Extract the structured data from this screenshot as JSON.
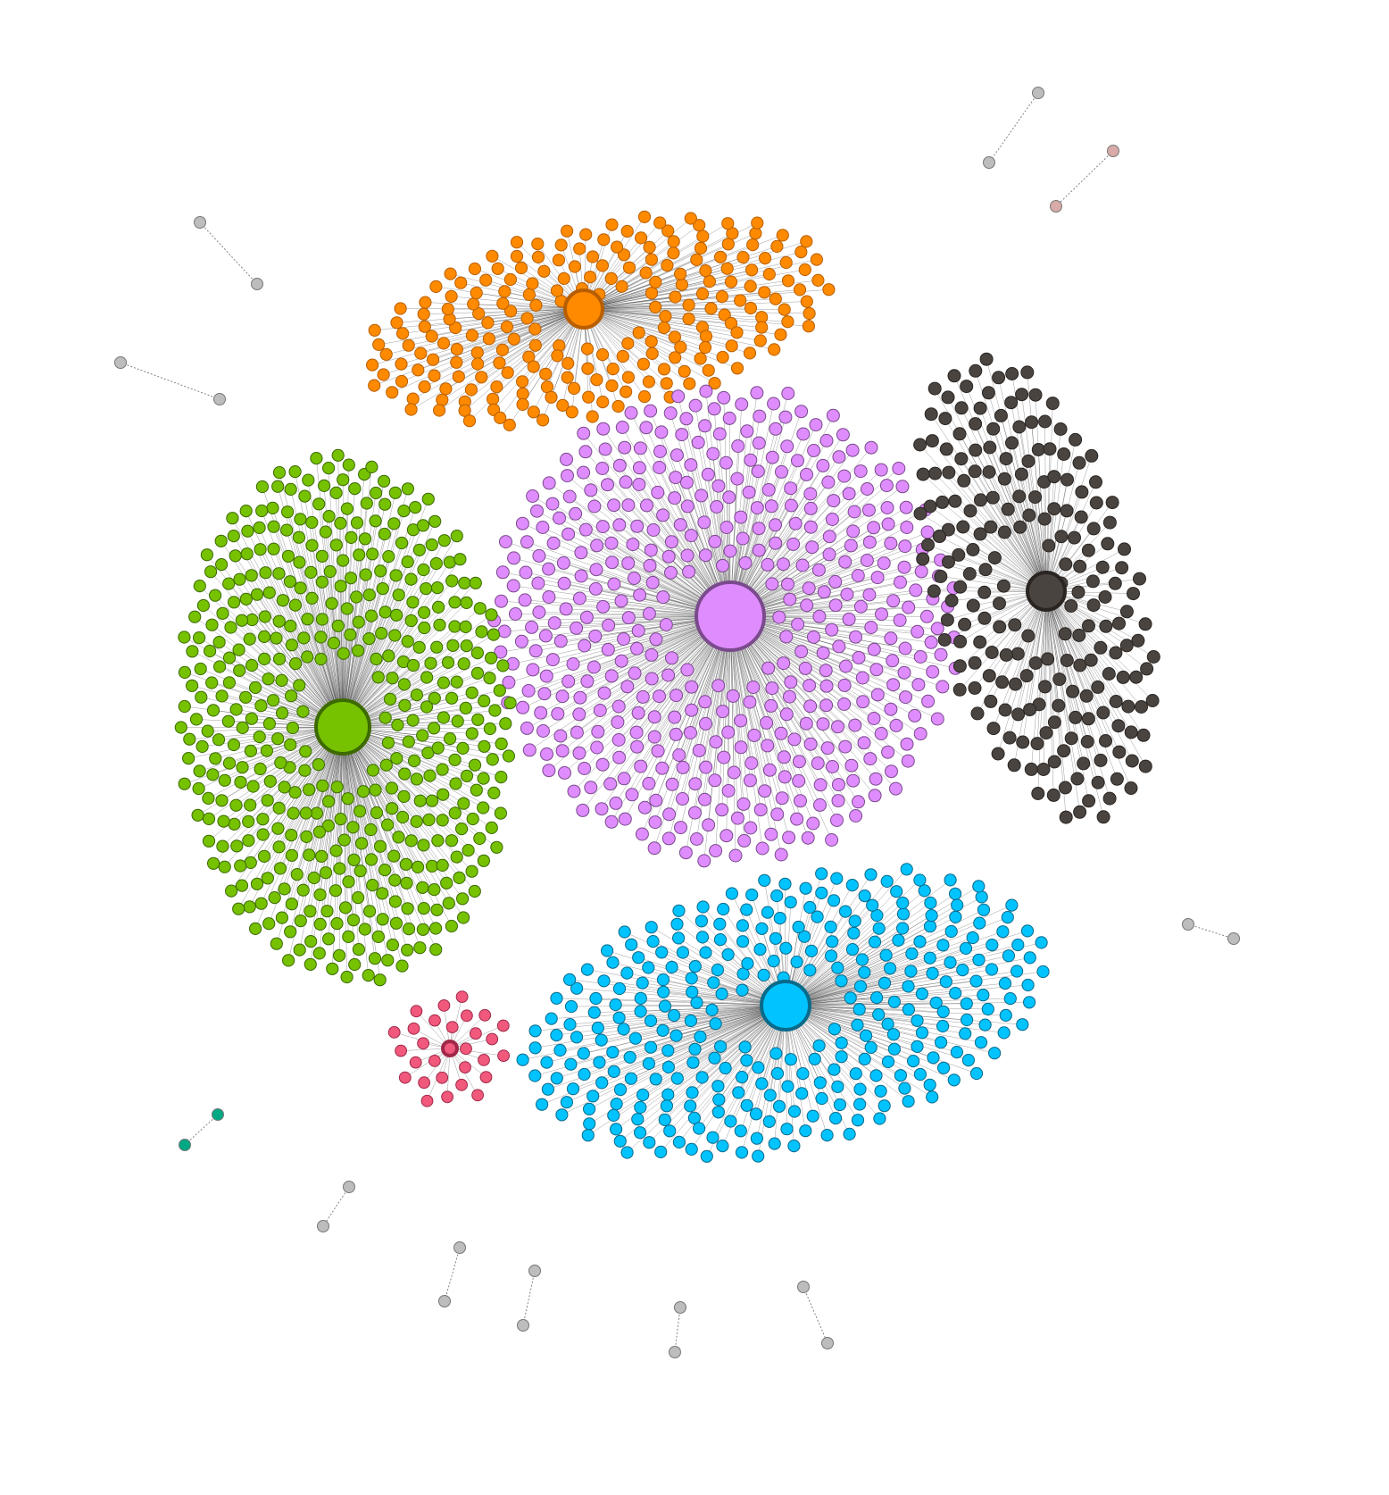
{
  "graph": {
    "type": "network",
    "edge_color": "#3a3a3a",
    "clusters": [
      {
        "id": "orange",
        "fill": "#ff8a00",
        "stroke": "#b85e00",
        "leaf_count": 230
      },
      {
        "id": "violet",
        "fill": "#df8cff",
        "stroke": "#7a4a8c",
        "leaf_count": 480
      },
      {
        "id": "dark-gray",
        "fill": "#4a4440",
        "stroke": "#2a2522",
        "leaf_count": 210
      },
      {
        "id": "green",
        "fill": "#76c100",
        "stroke": "#3c6a00",
        "leaf_count": 470
      },
      {
        "id": "cyan",
        "fill": "#00c3ff",
        "stroke": "#0a6a8a",
        "leaf_count": 330
      },
      {
        "id": "pink",
        "fill": "#f0587c",
        "stroke": "#a02848",
        "leaf_count": 28
      }
    ],
    "pairs": [
      {
        "id": "pair-gray-1",
        "fill": "#bdbdbd"
      },
      {
        "id": "pair-rose",
        "fill": "#d8aaa8"
      },
      {
        "id": "pair-gray-2",
        "fill": "#bdbdbd"
      },
      {
        "id": "pair-gray-3",
        "fill": "#bdbdbd"
      },
      {
        "id": "pair-gray-4",
        "fill": "#bdbdbd"
      },
      {
        "id": "pair-teal",
        "fill": "#00a884"
      },
      {
        "id": "pair-gray-5",
        "fill": "#bdbdbd"
      },
      {
        "id": "pair-gray-6",
        "fill": "#bdbdbd"
      },
      {
        "id": "pair-gray-7",
        "fill": "#bdbdbd"
      },
      {
        "id": "pair-gray-8",
        "fill": "#bdbdbd"
      },
      {
        "id": "pair-gray-9",
        "fill": "#bdbdbd"
      }
    ]
  }
}
